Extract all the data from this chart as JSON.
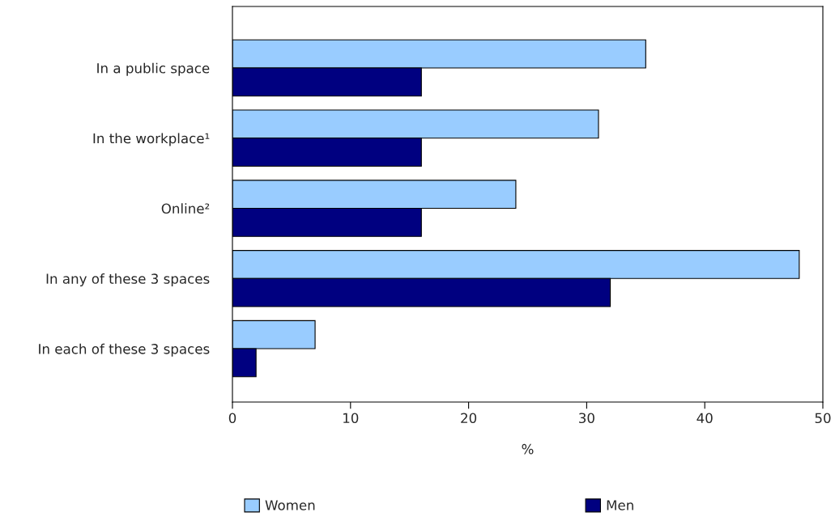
{
  "chart_data": {
    "type": "bar",
    "orientation": "horizontal",
    "categories": [
      "In a public space",
      "In the workplace¹",
      "Online²",
      "In any of these 3 spaces",
      "In each of these 3 spaces"
    ],
    "series": [
      {
        "name": "Women",
        "color": "#99ccff",
        "values": [
          35,
          31,
          24,
          48,
          7
        ]
      },
      {
        "name": "Men",
        "color": "#000080",
        "values": [
          16,
          16,
          16,
          32,
          2
        ]
      }
    ],
    "xlabel": "%",
    "xlim": [
      0,
      50
    ],
    "xticks": [
      0,
      10,
      20,
      30,
      40,
      50
    ],
    "grid": false,
    "legend": "bottom"
  }
}
